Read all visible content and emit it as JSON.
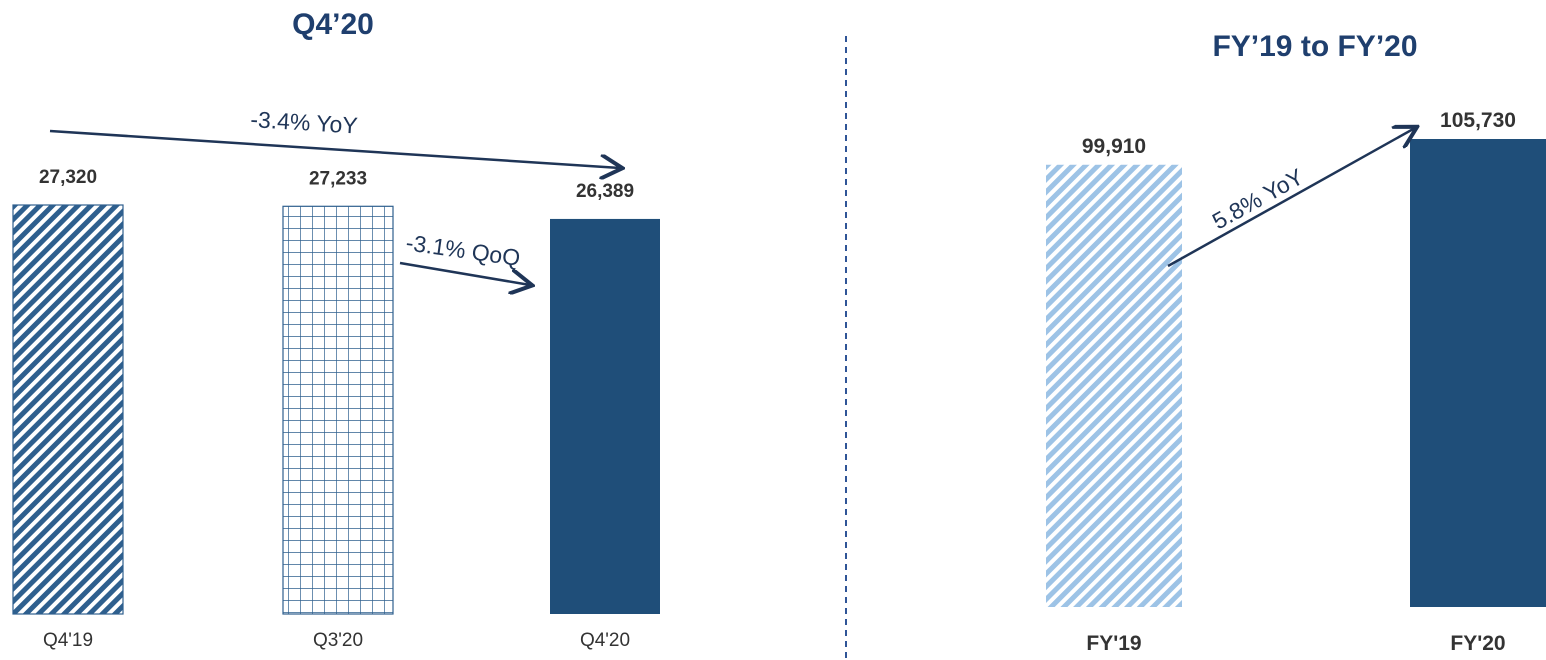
{
  "colors": {
    "title": "#1f3f6e",
    "bar_dark": "#1f4e79",
    "stripe_dark": "#2e5f8e",
    "stripe_light": "#9dc3e6",
    "arrow": "#1f3557",
    "divider": "#2f5597",
    "label": "#333333"
  },
  "chart_data": [
    {
      "type": "bar",
      "title": "Q4’20",
      "categories": [
        "Q4'19",
        "Q3'20",
        "Q4'20"
      ],
      "values": [
        27320,
        27233,
        26389
      ],
      "value_labels": [
        "27,320",
        "27,233",
        "26,389"
      ],
      "bar_fills": [
        "diagonal-hatch",
        "grid-hatch",
        "solid"
      ],
      "ylim": [
        0,
        27320
      ],
      "grid": false,
      "annotations": [
        {
          "text": "-3.4% YoY",
          "from": "Q4'19",
          "to": "Q4'20"
        },
        {
          "text": "-3.1% QoQ",
          "from": "Q3'20",
          "to": "Q4'20"
        }
      ]
    },
    {
      "type": "bar",
      "title": "FY’19 to FY’20",
      "categories": [
        "FY'19",
        "FY'20"
      ],
      "values": [
        99910,
        105730
      ],
      "value_labels": [
        "99,910",
        "105,730"
      ],
      "bar_fills": [
        "light-diagonal-hatch",
        "solid"
      ],
      "ylim": [
        0,
        105730
      ],
      "grid": false,
      "annotations": [
        {
          "text": "5.8% YoY",
          "from": "FY'19",
          "to": "FY'20"
        }
      ]
    }
  ]
}
